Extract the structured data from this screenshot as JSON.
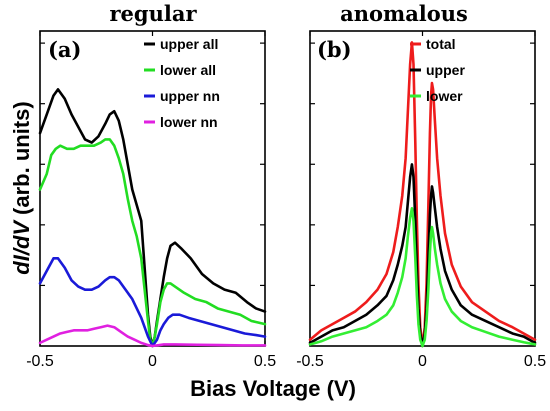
{
  "figure": {
    "xlabel": "Bias Voltage (V)",
    "ylabel_main": "dI/dV",
    "ylabel_units": "(arb. units)"
  },
  "chart_data": [
    {
      "type": "line",
      "title": "regular",
      "panel_label": "(a)",
      "xlim": [
        -0.5,
        0.5
      ],
      "ylim": [
        0,
        1
      ],
      "xticks": [
        -0.5,
        0,
        0.5
      ],
      "xtick_labels": [
        "-0.5",
        "0",
        "0.5"
      ],
      "y_tick_labels_shown": false,
      "legend_position": "top-right",
      "series": [
        {
          "name": "upper all",
          "color": "#000000",
          "points": [
            [
              -0.5,
              0.68
            ],
            [
              -0.47,
              0.74
            ],
            [
              -0.44,
              0.8
            ],
            [
              -0.42,
              0.82
            ],
            [
              -0.39,
              0.79
            ],
            [
              -0.36,
              0.74
            ],
            [
              -0.33,
              0.7
            ],
            [
              -0.3,
              0.66
            ],
            [
              -0.27,
              0.65
            ],
            [
              -0.24,
              0.67
            ],
            [
              -0.21,
              0.71
            ],
            [
              -0.19,
              0.74
            ],
            [
              -0.17,
              0.75
            ],
            [
              -0.15,
              0.72
            ],
            [
              -0.13,
              0.66
            ],
            [
              -0.11,
              0.58
            ],
            [
              -0.09,
              0.5
            ],
            [
              -0.07,
              0.45
            ],
            [
              -0.05,
              0.4
            ],
            [
              -0.035,
              0.25
            ],
            [
              -0.02,
              0.1
            ],
            [
              -0.01,
              0.03
            ],
            [
              0.0,
              0.0
            ],
            [
              0.01,
              0.03
            ],
            [
              0.02,
              0.08
            ],
            [
              0.035,
              0.15
            ],
            [
              0.05,
              0.22
            ],
            [
              0.065,
              0.28
            ],
            [
              0.08,
              0.32
            ],
            [
              0.1,
              0.33
            ],
            [
              0.13,
              0.31
            ],
            [
              0.17,
              0.28
            ],
            [
              0.22,
              0.23
            ],
            [
              0.27,
              0.2
            ],
            [
              0.32,
              0.18
            ],
            [
              0.37,
              0.17
            ],
            [
              0.42,
              0.14
            ],
            [
              0.46,
              0.12
            ],
            [
              0.5,
              0.11
            ]
          ]
        },
        {
          "name": "lower all",
          "color": "#22dd22",
          "points": [
            [
              -0.5,
              0.5
            ],
            [
              -0.47,
              0.55
            ],
            [
              -0.45,
              0.61
            ],
            [
              -0.43,
              0.63
            ],
            [
              -0.41,
              0.64
            ],
            [
              -0.38,
              0.63
            ],
            [
              -0.35,
              0.63
            ],
            [
              -0.32,
              0.64
            ],
            [
              -0.29,
              0.64
            ],
            [
              -0.26,
              0.64
            ],
            [
              -0.23,
              0.65
            ],
            [
              -0.21,
              0.66
            ],
            [
              -0.19,
              0.66
            ],
            [
              -0.17,
              0.64
            ],
            [
              -0.15,
              0.6
            ],
            [
              -0.13,
              0.55
            ],
            [
              -0.11,
              0.47
            ],
            [
              -0.09,
              0.4
            ],
            [
              -0.07,
              0.35
            ],
            [
              -0.05,
              0.28
            ],
            [
              -0.035,
              0.18
            ],
            [
              -0.02,
              0.08
            ],
            [
              -0.01,
              0.02
            ],
            [
              0.0,
              0.0
            ],
            [
              0.01,
              0.03
            ],
            [
              0.02,
              0.07
            ],
            [
              0.035,
              0.14
            ],
            [
              0.05,
              0.18
            ],
            [
              0.065,
              0.2
            ],
            [
              0.08,
              0.2
            ],
            [
              0.1,
              0.19
            ],
            [
              0.14,
              0.17
            ],
            [
              0.19,
              0.15
            ],
            [
              0.24,
              0.14
            ],
            [
              0.29,
              0.12
            ],
            [
              0.34,
              0.11
            ],
            [
              0.39,
              0.1
            ],
            [
              0.44,
              0.08
            ],
            [
              0.5,
              0.07
            ]
          ]
        },
        {
          "name": "upper nn",
          "color": "#1a1ad8",
          "points": [
            [
              -0.5,
              0.2
            ],
            [
              -0.47,
              0.24
            ],
            [
              -0.44,
              0.28
            ],
            [
              -0.42,
              0.28
            ],
            [
              -0.39,
              0.25
            ],
            [
              -0.36,
              0.21
            ],
            [
              -0.33,
              0.19
            ],
            [
              -0.3,
              0.18
            ],
            [
              -0.27,
              0.18
            ],
            [
              -0.24,
              0.19
            ],
            [
              -0.21,
              0.21
            ],
            [
              -0.19,
              0.22
            ],
            [
              -0.17,
              0.22
            ],
            [
              -0.15,
              0.21
            ],
            [
              -0.13,
              0.19
            ],
            [
              -0.11,
              0.17
            ],
            [
              -0.09,
              0.15
            ],
            [
              -0.07,
              0.12
            ],
            [
              -0.05,
              0.09
            ],
            [
              -0.035,
              0.06
            ],
            [
              -0.02,
              0.03
            ],
            [
              0.0,
              0.0
            ],
            [
              0.02,
              0.02
            ],
            [
              0.035,
              0.05
            ],
            [
              0.05,
              0.07
            ],
            [
              0.07,
              0.09
            ],
            [
              0.09,
              0.1
            ],
            [
              0.12,
              0.1
            ],
            [
              0.16,
              0.09
            ],
            [
              0.21,
              0.08
            ],
            [
              0.26,
              0.07
            ],
            [
              0.31,
              0.06
            ],
            [
              0.36,
              0.05
            ],
            [
              0.41,
              0.04
            ],
            [
              0.46,
              0.035
            ],
            [
              0.5,
              0.03
            ]
          ]
        },
        {
          "name": "lower nn",
          "color": "#e020e0",
          "points": [
            [
              -0.5,
              0.01
            ],
            [
              -0.47,
              0.02
            ],
            [
              -0.44,
              0.03
            ],
            [
              -0.41,
              0.04
            ],
            [
              -0.38,
              0.045
            ],
            [
              -0.35,
              0.05
            ],
            [
              -0.32,
              0.05
            ],
            [
              -0.29,
              0.05
            ],
            [
              -0.26,
              0.055
            ],
            [
              -0.23,
              0.06
            ],
            [
              -0.2,
              0.065
            ],
            [
              -0.17,
              0.06
            ],
            [
              -0.14,
              0.045
            ],
            [
              -0.11,
              0.03
            ],
            [
              -0.08,
              0.02
            ],
            [
              -0.05,
              0.01
            ],
            [
              -0.02,
              0.003
            ],
            [
              0.0,
              0.0
            ],
            [
              0.02,
              0.002
            ],
            [
              0.05,
              0.005
            ],
            [
              0.1,
              0.005
            ],
            [
              0.2,
              0.004
            ],
            [
              0.3,
              0.003
            ],
            [
              0.4,
              0.002
            ],
            [
              0.5,
              0.002
            ]
          ]
        }
      ]
    },
    {
      "type": "line",
      "title": "anomalous",
      "panel_label": "(b)",
      "xlim": [
        -0.5,
        0.5
      ],
      "ylim": [
        0,
        1
      ],
      "xticks": [
        -0.5,
        0,
        0.5
      ],
      "xtick_labels": [
        "-0.5",
        "0",
        "0.5"
      ],
      "y_tick_labels_shown": false,
      "legend_position": "top-right",
      "series": [
        {
          "name": "total",
          "color": "#ee1c1c",
          "points": [
            [
              -0.5,
              0.02
            ],
            [
              -0.45,
              0.05
            ],
            [
              -0.4,
              0.07
            ],
            [
              -0.35,
              0.09
            ],
            [
              -0.3,
              0.11
            ],
            [
              -0.25,
              0.14
            ],
            [
              -0.2,
              0.18
            ],
            [
              -0.16,
              0.23
            ],
            [
              -0.13,
              0.3
            ],
            [
              -0.11,
              0.38
            ],
            [
              -0.09,
              0.48
            ],
            [
              -0.075,
              0.6
            ],
            [
              -0.065,
              0.75
            ],
            [
              -0.055,
              0.9
            ],
            [
              -0.047,
              0.97
            ],
            [
              -0.04,
              0.9
            ],
            [
              -0.032,
              0.65
            ],
            [
              -0.025,
              0.4
            ],
            [
              -0.018,
              0.2
            ],
            [
              -0.01,
              0.06
            ],
            [
              0.0,
              0.0
            ],
            [
              0.01,
              0.06
            ],
            [
              0.018,
              0.2
            ],
            [
              0.026,
              0.45
            ],
            [
              0.033,
              0.68
            ],
            [
              0.038,
              0.8
            ],
            [
              0.042,
              0.84
            ],
            [
              0.047,
              0.82
            ],
            [
              0.055,
              0.72
            ],
            [
              0.065,
              0.6
            ],
            [
              0.08,
              0.48
            ],
            [
              0.1,
              0.36
            ],
            [
              0.13,
              0.26
            ],
            [
              0.17,
              0.19
            ],
            [
              0.22,
              0.14
            ],
            [
              0.28,
              0.11
            ],
            [
              0.34,
              0.08
            ],
            [
              0.4,
              0.06
            ],
            [
              0.45,
              0.04
            ],
            [
              0.5,
              0.02
            ]
          ]
        },
        {
          "name": "upper",
          "color": "#000000",
          "points": [
            [
              -0.5,
              0.01
            ],
            [
              -0.45,
              0.03
            ],
            [
              -0.4,
              0.05
            ],
            [
              -0.35,
              0.06
            ],
            [
              -0.3,
              0.08
            ],
            [
              -0.25,
              0.1
            ],
            [
              -0.2,
              0.13
            ],
            [
              -0.16,
              0.16
            ],
            [
              -0.13,
              0.21
            ],
            [
              -0.11,
              0.26
            ],
            [
              -0.09,
              0.32
            ],
            [
              -0.075,
              0.38
            ],
            [
              -0.065,
              0.46
            ],
            [
              -0.055,
              0.54
            ],
            [
              -0.047,
              0.58
            ],
            [
              -0.04,
              0.54
            ],
            [
              -0.032,
              0.4
            ],
            [
              -0.025,
              0.25
            ],
            [
              -0.018,
              0.12
            ],
            [
              -0.01,
              0.04
            ],
            [
              0.0,
              0.0
            ],
            [
              0.01,
              0.04
            ],
            [
              0.018,
              0.12
            ],
            [
              0.026,
              0.28
            ],
            [
              0.033,
              0.42
            ],
            [
              0.038,
              0.48
            ],
            [
              0.042,
              0.51
            ],
            [
              0.047,
              0.49
            ],
            [
              0.055,
              0.44
            ],
            [
              0.065,
              0.38
            ],
            [
              0.08,
              0.31
            ],
            [
              0.1,
              0.24
            ],
            [
              0.13,
              0.18
            ],
            [
              0.17,
              0.13
            ],
            [
              0.22,
              0.1
            ],
            [
              0.28,
              0.08
            ],
            [
              0.34,
              0.06
            ],
            [
              0.4,
              0.04
            ],
            [
              0.45,
              0.03
            ],
            [
              0.5,
              0.01
            ]
          ]
        },
        {
          "name": "lower",
          "color": "#33ee33",
          "points": [
            [
              -0.5,
              0.005
            ],
            [
              -0.45,
              0.015
            ],
            [
              -0.4,
              0.03
            ],
            [
              -0.35,
              0.04
            ],
            [
              -0.3,
              0.05
            ],
            [
              -0.25,
              0.06
            ],
            [
              -0.2,
              0.08
            ],
            [
              -0.16,
              0.1
            ],
            [
              -0.13,
              0.13
            ],
            [
              -0.11,
              0.17
            ],
            [
              -0.09,
              0.22
            ],
            [
              -0.075,
              0.28
            ],
            [
              -0.065,
              0.35
            ],
            [
              -0.055,
              0.41
            ],
            [
              -0.047,
              0.44
            ],
            [
              -0.04,
              0.4
            ],
            [
              -0.032,
              0.28
            ],
            [
              -0.025,
              0.16
            ],
            [
              -0.018,
              0.07
            ],
            [
              -0.01,
              0.02
            ],
            [
              0.0,
              0.0
            ],
            [
              0.01,
              0.02
            ],
            [
              0.018,
              0.08
            ],
            [
              0.026,
              0.18
            ],
            [
              0.033,
              0.3
            ],
            [
              0.038,
              0.36
            ],
            [
              0.042,
              0.38
            ],
            [
              0.047,
              0.36
            ],
            [
              0.055,
              0.31
            ],
            [
              0.065,
              0.26
            ],
            [
              0.08,
              0.2
            ],
            [
              0.1,
              0.15
            ],
            [
              0.13,
              0.11
            ],
            [
              0.17,
              0.08
            ],
            [
              0.22,
              0.06
            ],
            [
              0.28,
              0.045
            ],
            [
              0.34,
              0.03
            ],
            [
              0.4,
              0.02
            ],
            [
              0.45,
              0.012
            ],
            [
              0.5,
              0.005
            ]
          ]
        }
      ]
    }
  ]
}
